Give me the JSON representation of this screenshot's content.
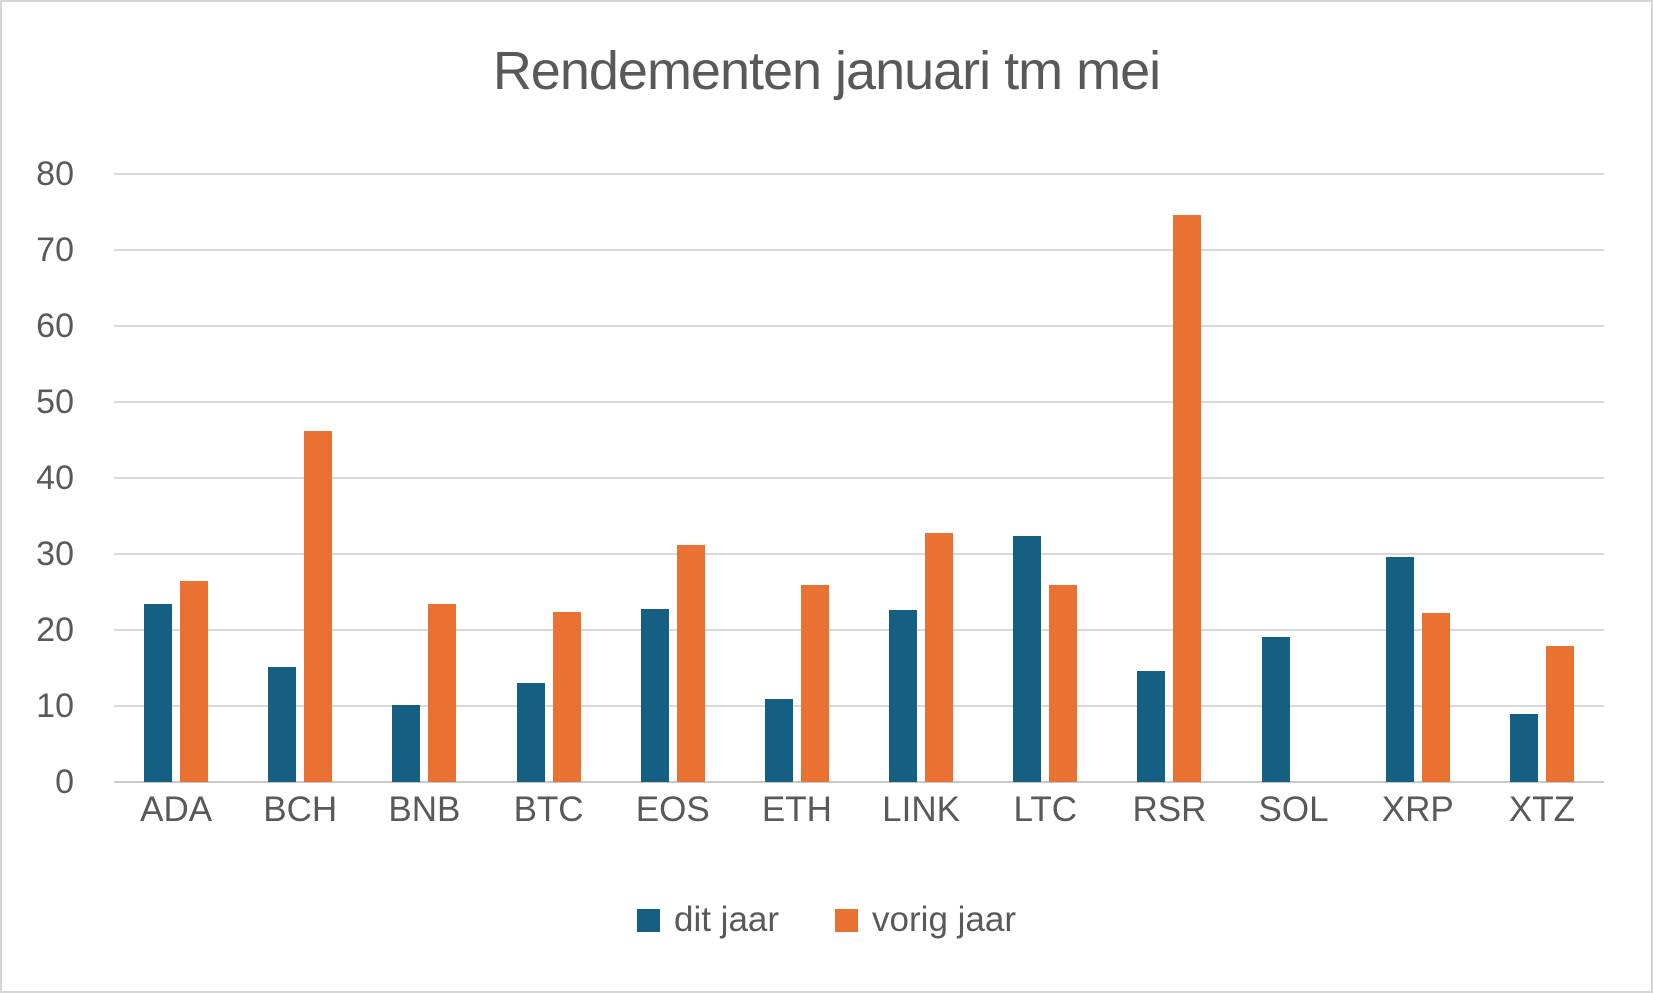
{
  "page": {
    "background_color": "#FFFFFF",
    "border_color": "#D6D6D6"
  },
  "chart_data": {
    "type": "bar",
    "title": "Rendementen januari tm mei",
    "categories": [
      "ADA",
      "BCH",
      "BNB",
      "BTC",
      "EOS",
      "ETH",
      "LINK",
      "LTC",
      "RSR",
      "SOL",
      "XRP",
      "XTZ"
    ],
    "series": [
      {
        "name": "dit jaar",
        "color": "#156082",
        "values": [
          23.4,
          15.2,
          10.2,
          13.0,
          22.8,
          10.9,
          22.7,
          32.4,
          14.6,
          19.1,
          29.6,
          8.9
        ]
      },
      {
        "name": "vorig jaar",
        "color": "#E97132",
        "values": [
          26.4,
          46.2,
          23.4,
          22.4,
          31.2,
          25.9,
          32.8,
          25.9,
          74.6,
          0,
          22.2,
          17.9
        ]
      }
    ],
    "xlabel": "",
    "ylabel": "",
    "ylim": [
      0,
      80
    ],
    "y_ticks": [
      0,
      10,
      20,
      30,
      40,
      50,
      60,
      70,
      80
    ],
    "grid": "horizontal",
    "gridline_color": "#D9D9D9",
    "axis_text_color": "#595959",
    "title_color": "#595959",
    "legend_position": "bottom"
  }
}
